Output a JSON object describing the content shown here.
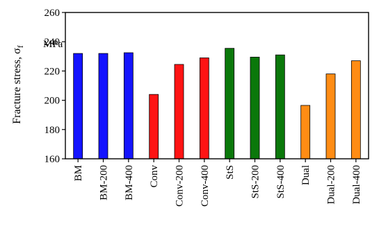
{
  "chart_data": {
    "type": "bar",
    "title": "",
    "xlabel": "",
    "ylabel": "Fracture stress, σf",
    "ylabel_main": "Fracture stress, σ",
    "ylabel_sub": "f",
    "y_unit": "MPa",
    "ylim": [
      160,
      260
    ],
    "yticks": [
      160,
      180,
      200,
      220,
      240,
      260
    ],
    "grid": false,
    "legend": "none",
    "categories": [
      "BM",
      "BM-200",
      "BM-400",
      "Conv",
      "Conv-200",
      "Conv-400",
      "StS",
      "StS-200",
      "StS-400",
      "Dual",
      "Dual-200",
      "Dual-400"
    ],
    "values": [
      232,
      232,
      232.5,
      204,
      224.5,
      229,
      235.5,
      229.5,
      231,
      196.5,
      218,
      227
    ],
    "colors": [
      "#1414ff",
      "#1414ff",
      "#1414ff",
      "#ff1414",
      "#ff1414",
      "#ff1414",
      "#0a780a",
      "#0a780a",
      "#0a780a",
      "#ff8c14",
      "#ff8c14",
      "#ff8c14"
    ]
  }
}
